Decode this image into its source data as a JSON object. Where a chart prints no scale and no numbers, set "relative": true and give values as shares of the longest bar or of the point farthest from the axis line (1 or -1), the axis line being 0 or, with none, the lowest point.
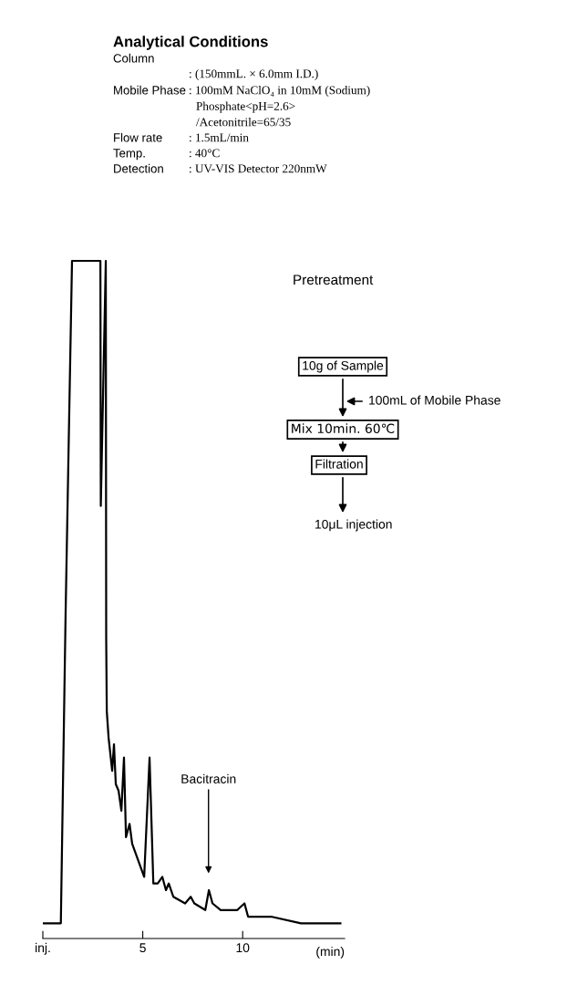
{
  "chart_data": {
    "type": "line",
    "title": "Analytical Conditions",
    "relative": true,
    "color": "#000000",
    "x": [
      0.05,
      0.9,
      1.14,
      1.46,
      2.88,
      2.9,
      3.15,
      3.17,
      3.2,
      3.29,
      3.47,
      3.56,
      3.65,
      3.79,
      3.93,
      4.06,
      4.16,
      4.34,
      4.47,
      5.07,
      5.34,
      5.53,
      5.75,
      5.98,
      6.16,
      6.3,
      6.53,
      7.12,
      7.4,
      7.58,
      8.13,
      8.31,
      8.49,
      8.9,
      9.27,
      9.73,
      10.09,
      10.27,
      11.42,
      12.92,
      13.97,
      14.89
    ],
    "values": [
      0,
      0,
      0.47,
      1.0,
      1.0,
      0.63,
      1.0,
      0.43,
      0.32,
      0.28,
      0.23,
      0.27,
      0.21,
      0.2,
      0.17,
      0.25,
      0.13,
      0.15,
      0.12,
      0.07,
      0.25,
      0.06,
      0.06,
      0.07,
      0.05,
      0.06,
      0.04,
      0.03,
      0.04,
      0.03,
      0.02,
      0.05,
      0.03,
      0.02,
      0.02,
      0.02,
      0.03,
      0.01,
      0.01,
      0.0,
      0.0,
      0
    ],
    "xlabel": "(min)",
    "xlim": [
      0,
      15.1
    ],
    "xticks": [
      {
        "value": 0,
        "label": "inj."
      },
      5,
      10
    ],
    "tick_labels": "x",
    "grid": false,
    "legend": false,
    "marker": "none",
    "line_style": "solid",
    "annotations": [
      "Column",
      ": (150mmL. × 6.0mm I.D.)",
      "Mobile Phase",
      ": 100mM NaClO₄ in 10mM (Sodium)\nPhosphate<pH=2.6>\n/Acetonitrile=65/35",
      "Flow rate",
      ": 1.5mL/min",
      "Temp.",
      ": 40°C",
      "Detection",
      ": UV-VIS Detector 220nmW",
      "Pretreatment",
      "10g of Sample",
      "100mL of Mobile Phase",
      "Mix 10min. 60℃",
      "Filtration",
      "10μL injection",
      "Bacitracin"
    ]
  }
}
